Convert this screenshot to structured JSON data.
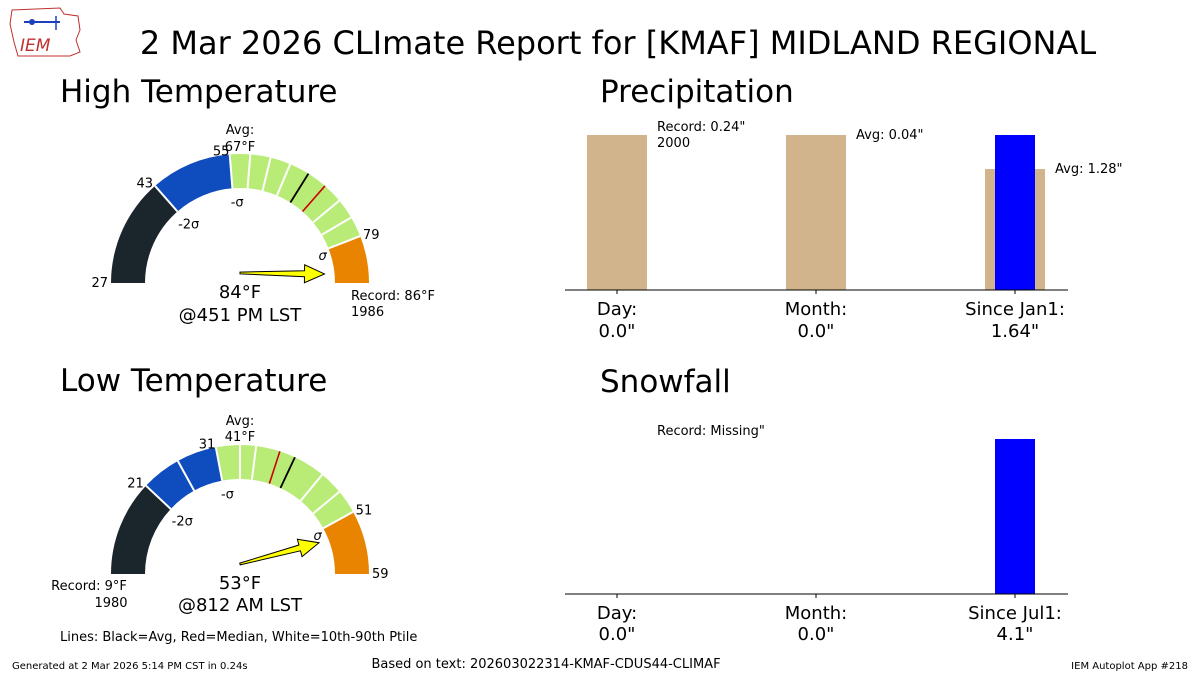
{
  "title": "2 Mar 2026 CLImate Report for [KMAF] MIDLAND REGIONAL",
  "logo_text": "IEM",
  "footer": {
    "generated": "Generated at 2 Mar 2026 5:14 PM CST in 0.24s",
    "based_on": "Based on text: 202603022314-KMAF-CDUS44-CLIMAF",
    "app": "IEM Autoplot App #218",
    "lines_legend": "Lines: Black=Avg, Red=Median, White=10th-90th Ptile"
  },
  "colors": {
    "extreme_low": "#1b262c",
    "sigma2": "#0f4dbf",
    "normal": "#b9eb77",
    "high": "#e88400",
    "needle": "#ffff00",
    "precip_avg": "#d2b48c",
    "observed": "#0000ff",
    "median_line": "#cc0000"
  },
  "chart_data": [
    {
      "type": "gauge",
      "title": "High Temperature",
      "range": [
        27,
        86
      ],
      "scale_labels": [
        "27",
        "43",
        "55",
        "79"
      ],
      "scale_values": [
        27,
        43,
        55,
        79
      ],
      "sigma_labels": [
        "-2σ",
        "-σ",
        "σ"
      ],
      "band_edges": [
        27,
        43,
        55,
        79,
        86
      ],
      "avg_label": "Avg:",
      "avg_value_label": "67°F",
      "avg": 67,
      "median": 70,
      "percentile_ticks": [
        58,
        61,
        64,
        73,
        76
      ],
      "observed": 84,
      "observed_label": "84°F",
      "observed_time": "@451 PM LST",
      "record_label": "Record: 86°F",
      "record_year": "1986"
    },
    {
      "type": "gauge",
      "title": "Low Temperature",
      "range": [
        9,
        59
      ],
      "scale_labels": [
        "21",
        "31",
        "51",
        "59"
      ],
      "scale_values": [
        21,
        31,
        51,
        59
      ],
      "sigma_labels": [
        "-2σ",
        "-σ",
        "σ"
      ],
      "band_edges": [
        9,
        21,
        31,
        51,
        59
      ],
      "avg_label": "Avg:",
      "avg_value_label": "41°F",
      "avg": 41,
      "median": 39,
      "percentile_ticks": [
        26,
        34,
        36,
        45,
        48
      ],
      "observed": 53,
      "observed_label": "53°F",
      "observed_time": "@812 AM LST",
      "record_label": "Record: 9°F",
      "record_year": "1980"
    },
    {
      "type": "bar",
      "title": "Precipitation",
      "categories": [
        "Day:",
        "Month:",
        "Since Jan1:"
      ],
      "observed_labels": [
        "0.0\"",
        "0.0\"",
        "1.64\""
      ],
      "observed": [
        0.0,
        0.0,
        1.64
      ],
      "records": [
        0.24,
        null,
        null
      ],
      "record_labels": [
        "Record: 0.24\"",
        "",
        ""
      ],
      "record_years": [
        "2000",
        "",
        ""
      ],
      "averages": [
        null,
        0.04,
        1.28
      ],
      "avg_labels": [
        "",
        "Avg: 0.04\"",
        "Avg: 1.28\""
      ],
      "normalize_to": [
        0.24,
        0.04,
        1.64
      ]
    },
    {
      "type": "bar",
      "title": "Snowfall",
      "categories": [
        "Day:",
        "Month:",
        "Since Jul1:"
      ],
      "observed_labels": [
        "0.0\"",
        "0.0\"",
        "4.1\""
      ],
      "observed": [
        0.0,
        0.0,
        4.1
      ],
      "record_labels": [
        "Record: Missing\"",
        "",
        ""
      ],
      "normalize_to": [
        1,
        1,
        4.1
      ]
    }
  ]
}
